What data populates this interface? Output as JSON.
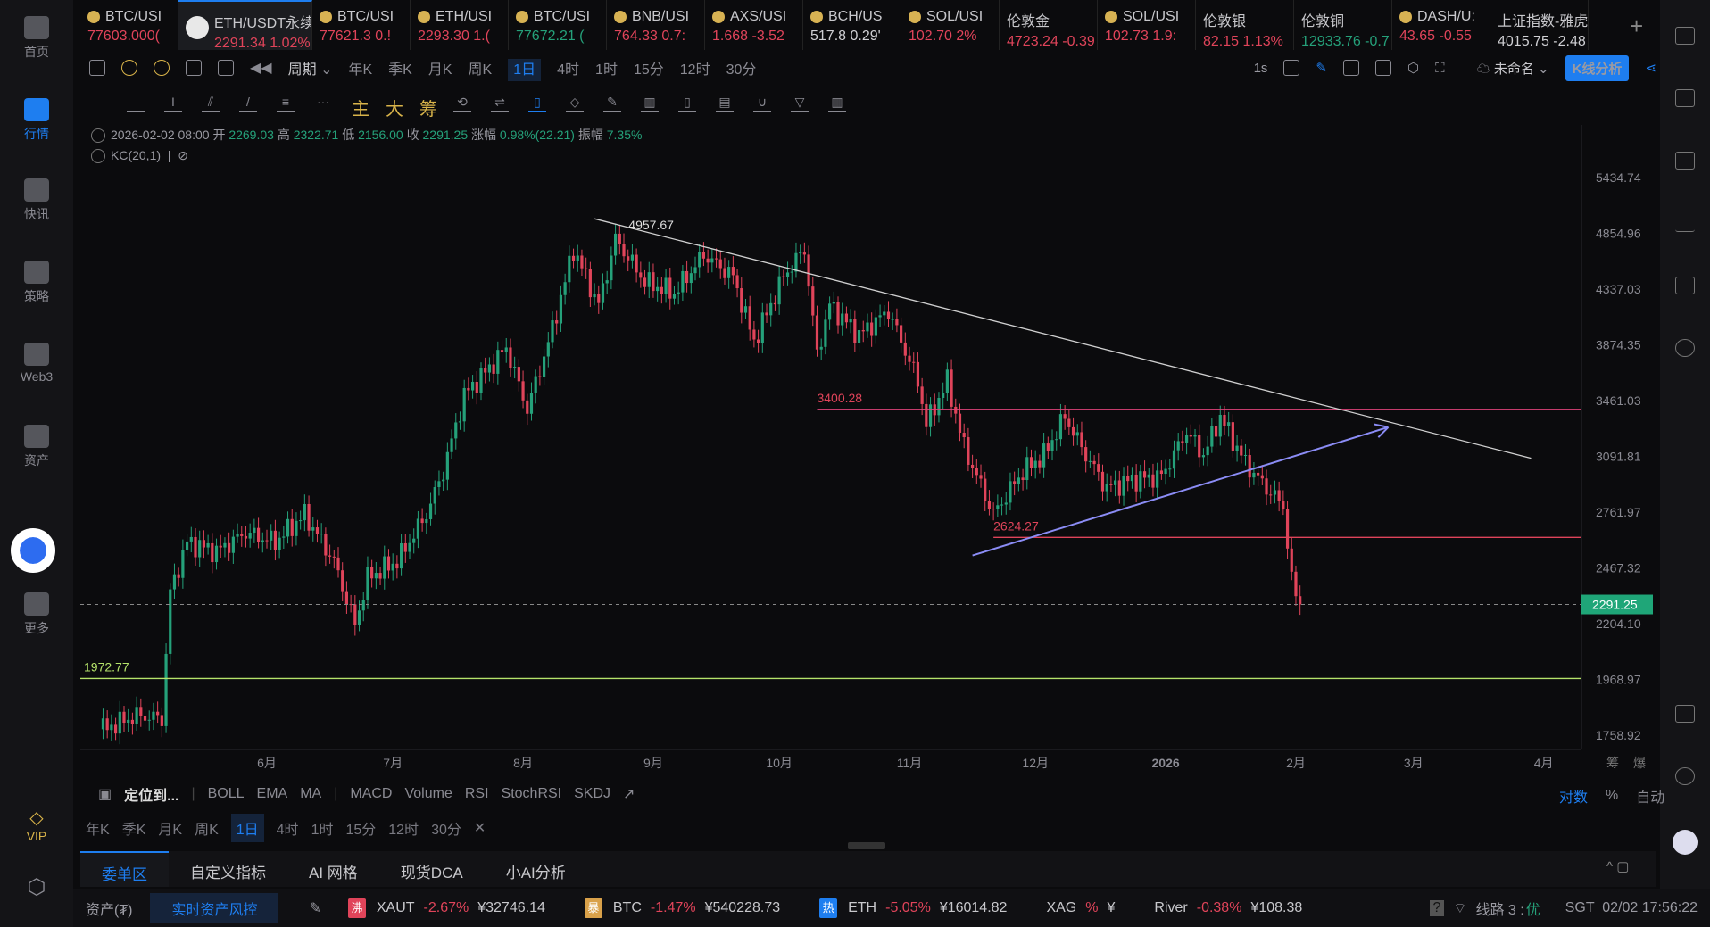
{
  "sidebar": {
    "items": [
      {
        "label": "首页"
      },
      {
        "label": "行情",
        "active": true
      },
      {
        "label": "快讯"
      },
      {
        "label": "策略"
      },
      {
        "label": "Web3"
      },
      {
        "label": "资产"
      },
      {
        "label": "更多"
      }
    ],
    "vip": "VIP"
  },
  "tickers": [
    {
      "name": "BTC/USI",
      "price": "77603.000(",
      "color": "dn"
    },
    {
      "name": "ETH/USDT永续",
      "price": "2291.34 1.02%",
      "color": "dn",
      "active": true
    },
    {
      "name": "BTC/USI",
      "price": "77621.3 0.!",
      "color": "dn"
    },
    {
      "name": "ETH/USI",
      "price": "2293.30 1.(",
      "color": "dn"
    },
    {
      "name": "BTC/USI",
      "price": "77672.21 (",
      "color": "up"
    },
    {
      "name": "BNB/USI",
      "price": "764.33 0.7:",
      "color": "dn"
    },
    {
      "name": "AXS/USI",
      "price": "1.668 -3.52",
      "color": "dn"
    },
    {
      "name": "BCH/US",
      "price": "517.8 0.29'",
      "color": "wh"
    },
    {
      "name": "SOL/USI",
      "price": "102.70 2%",
      "color": "dn"
    },
    {
      "name": "伦敦金",
      "price": "4723.24 -0.39",
      "color": "dn"
    },
    {
      "name": "SOL/USI",
      "price": "102.73 1.9:",
      "color": "dn"
    },
    {
      "name": "伦敦银",
      "price": "82.15 1.13%",
      "color": "dn"
    },
    {
      "name": "伦敦铜",
      "price": "12933.76 -0.7",
      "color": "up"
    },
    {
      "name": "DASH/U:",
      "price": "43.65 -0.55",
      "color": "dn"
    },
    {
      "name": "上证指数-雅虎",
      "price": "4015.75 -2.48",
      "color": "wh"
    }
  ],
  "toolbar": {
    "period": "周期",
    "periods": [
      "年K",
      "季K",
      "月K",
      "周K",
      "1日",
      "4时",
      "1时",
      "15分",
      "12时",
      "30分"
    ],
    "selected": "1日",
    "chip_labels": [
      "主",
      "大",
      "筹"
    ],
    "interval": "1s",
    "layout_name": "未命名",
    "analysis_button": "K线分析"
  },
  "info": {
    "datetime": "2026-02-02 08:00",
    "open_label": "开",
    "open": "2269.03",
    "high_label": "高",
    "high": "2322.71",
    "low_label": "低",
    "low": "2156.00",
    "close_label": "收",
    "close": "2291.25",
    "change_label": "涨幅",
    "change": "0.98%(22.21)",
    "amp_label": "振幅",
    "amp": "7.35%",
    "indicator": "KC(20,1)"
  },
  "chart_data": {
    "type": "candlestick",
    "scale": "log",
    "ylim": [
      1758.92,
      5434.74
    ],
    "y_ticks": [
      "5434.74",
      "4854.96",
      "4337.03",
      "3874.35",
      "3461.03",
      "3091.81",
      "2761.97",
      "2467.32",
      "2204.10",
      "1968.97",
      "1758.92"
    ],
    "x_ticks": [
      {
        "label": "6月",
        "date": "2025-06-01"
      },
      {
        "label": "7月",
        "date": "2025-07-01"
      },
      {
        "label": "8月",
        "date": "2025-08-01"
      },
      {
        "label": "9月",
        "date": "2025-09-01"
      },
      {
        "label": "10月",
        "date": "2025-10-01"
      },
      {
        "label": "11月",
        "date": "2025-11-01"
      },
      {
        "label": "12月",
        "date": "2025-12-01"
      },
      {
        "label": "2026",
        "date": "2026-01-01"
      },
      {
        "label": "2月",
        "date": "2026-02-01"
      },
      {
        "label": "3月",
        "date": "2026-03-01"
      },
      {
        "label": "4月",
        "date": "2026-04-01"
      }
    ],
    "price_path": [
      [
        "2025-04-23",
        1780
      ],
      [
        "2025-05-01",
        1830
      ],
      [
        "2025-05-07",
        1820
      ],
      [
        "2025-05-09",
        2350
      ],
      [
        "2025-05-13",
        2600
      ],
      [
        "2025-05-20",
        2550
      ],
      [
        "2025-05-27",
        2650
      ],
      [
        "2025-06-03",
        2600
      ],
      [
        "2025-06-10",
        2750
      ],
      [
        "2025-06-17",
        2500
      ],
      [
        "2025-06-22",
        2200
      ],
      [
        "2025-06-25",
        2420
      ],
      [
        "2025-07-02",
        2500
      ],
      [
        "2025-07-09",
        2750
      ],
      [
        "2025-07-13",
        3000
      ],
      [
        "2025-07-18",
        3500
      ],
      [
        "2025-07-24",
        3700
      ],
      [
        "2025-07-28",
        3850
      ],
      [
        "2025-08-02",
        3400
      ],
      [
        "2025-08-08",
        4000
      ],
      [
        "2025-08-13",
        4700
      ],
      [
        "2025-08-19",
        4200
      ],
      [
        "2025-08-23",
        4800
      ],
      [
        "2025-08-30",
        4400
      ],
      [
        "2025-09-06",
        4300
      ],
      [
        "2025-09-13",
        4650
      ],
      [
        "2025-09-20",
        4450
      ],
      [
        "2025-09-25",
        3900
      ],
      [
        "2025-10-02",
        4450
      ],
      [
        "2025-10-07",
        4700
      ],
      [
        "2025-10-10",
        3800
      ],
      [
        "2025-10-13",
        4200
      ],
      [
        "2025-10-20",
        3950
      ],
      [
        "2025-10-27",
        4150
      ],
      [
        "2025-11-03",
        3600
      ],
      [
        "2025-11-05",
        3300
      ],
      [
        "2025-11-10",
        3600
      ],
      [
        "2025-11-14",
        3150
      ],
      [
        "2025-11-21",
        2750
      ],
      [
        "2025-11-28",
        3000
      ],
      [
        "2025-12-03",
        3100
      ],
      [
        "2025-12-08",
        3350
      ],
      [
        "2025-12-13",
        3100
      ],
      [
        "2025-12-18",
        2900
      ],
      [
        "2025-12-24",
        2950
      ],
      [
        "2025-12-31",
        2970
      ],
      [
        "2026-01-06",
        3250
      ],
      [
        "2026-01-10",
        3100
      ],
      [
        "2026-01-14",
        3350
      ],
      [
        "2026-01-20",
        3050
      ],
      [
        "2026-01-25",
        2900
      ],
      [
        "2026-01-29",
        2800
      ],
      [
        "2026-01-31",
        2400
      ],
      [
        "2026-02-02",
        2291.25
      ]
    ],
    "last_price": "2291.25",
    "annotations": {
      "high_label": "4957.67",
      "levels": [
        {
          "label": "3400.28",
          "value": 3400.28,
          "from": "2025-10-10",
          "color": "#e0447a"
        },
        {
          "label": "2624.27",
          "value": 2624.27,
          "from": "2025-11-21",
          "color": "#e0445a"
        },
        {
          "label": "1972.77",
          "value": 1972.77,
          "from": "2025-04-23",
          "color": "#b5e36a"
        }
      ],
      "trendlines": [
        {
          "from": [
            "2025-08-18",
            5000
          ],
          "to": [
            "2026-03-29",
            3080
          ],
          "color": "#d0d0d0"
        },
        {
          "from": [
            "2025-11-16",
            2530
          ],
          "to": [
            "2026-02-23",
            3280
          ],
          "color": "#8b8cf5",
          "arrow": true
        }
      ]
    }
  },
  "indicators": {
    "locate": "定位到...",
    "main": [
      "BOLL",
      "EMA",
      "MA"
    ],
    "sub": [
      "MACD",
      "Volume",
      "RSI",
      "StochRSI",
      "SKDJ"
    ],
    "scale": [
      "对数",
      "%",
      "自动"
    ]
  },
  "axis_extra": [
    "筹",
    "爆"
  ],
  "tabs": [
    "委单区",
    "自定义指标",
    "AI 网格",
    "现货DCA",
    "小AI分析"
  ],
  "status": {
    "assets": "资产(₮)",
    "risk": "实时资产风控",
    "items": [
      {
        "badge": "沸",
        "badge_color": "#e0445a",
        "sym": "XAUT",
        "chg": "-2.67%",
        "val": "¥32746.14"
      },
      {
        "badge": "暴",
        "badge_color": "#d9a14a",
        "sym": "BTC",
        "chg": "-1.47%",
        "val": "¥540228.73"
      },
      {
        "badge": "热",
        "badge_color": "#1e7ef0",
        "sym": "ETH",
        "chg": "-5.05%",
        "val": "¥16014.82"
      },
      {
        "sym": "XAG",
        "chg": "%",
        "val": "¥"
      },
      {
        "sym": "River",
        "chg": "-0.38%",
        "val": "¥108.38"
      }
    ],
    "line": "线路 3 :",
    "quality": "优",
    "time": "SGT  02/02 17:56:22"
  }
}
